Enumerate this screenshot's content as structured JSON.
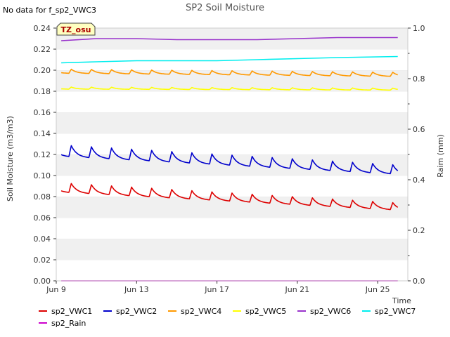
{
  "chart_data": {
    "type": "line",
    "title": "SP2 Soil Moisture",
    "no_data_note": "No data for f_sp2_VWC3",
    "site_badge": "TZ_osu",
    "xlabel": "Time",
    "ylabel": "Soil Moisture (m3/m3)",
    "y2label": "Raim (mm)",
    "xlim": [
      "2024-06-09",
      "2024-06-26T12:00"
    ],
    "ylim": [
      0.0,
      0.24
    ],
    "y2lim": [
      0.0,
      1.0
    ],
    "x_ticks": [
      {
        "date": "2024-06-09",
        "label": "Jun 9"
      },
      {
        "date": "2024-06-13",
        "label": "Jun 13"
      },
      {
        "date": "2024-06-17",
        "label": "Jun 17"
      },
      {
        "date": "2024-06-21",
        "label": "Jun 21"
      },
      {
        "date": "2024-06-25",
        "label": "Jun 25"
      }
    ],
    "y_ticks": [
      "0.00",
      "0.02",
      "0.04",
      "0.06",
      "0.08",
      "0.10",
      "0.12",
      "0.14",
      "0.16",
      "0.18",
      "0.20",
      "0.22",
      "0.24"
    ],
    "y2_ticks": [
      "0.0",
      "0.2",
      "0.4",
      "0.6",
      "0.8",
      "1.0"
    ],
    "grid": "horizontal bands",
    "legend_position": "bottom",
    "series": [
      {
        "name": "sp2_VWC1",
        "color": "#dd0000",
        "pattern": "diurnal",
        "start": "2024-06-09T06:00",
        "end": "2024-06-26",
        "first_peak": "2024-06-09T18:00",
        "base_start": 0.084,
        "base_end": 0.067,
        "amp_start": 0.009,
        "amp_end": 0.007
      },
      {
        "name": "sp2_VWC2",
        "color": "#0000cc",
        "pattern": "diurnal",
        "start": "2024-06-09T06:00",
        "end": "2024-06-26",
        "first_peak": "2024-06-09T18:00",
        "base_start": 0.118,
        "base_end": 0.101,
        "amp_start": 0.011,
        "amp_end": 0.009
      },
      {
        "name": "sp2_VWC4",
        "color": "#ff9900",
        "pattern": "diurnal",
        "start": "2024-06-09T06:00",
        "end": "2024-06-26",
        "first_peak": "2024-06-09T18:00",
        "base_start": 0.197,
        "base_end": 0.194,
        "amp_start": 0.004,
        "amp_end": 0.004
      },
      {
        "name": "sp2_VWC5",
        "color": "#ffff00",
        "pattern": "diurnal",
        "start": "2024-06-09T06:00",
        "end": "2024-06-26",
        "first_peak": "2024-06-09T18:00",
        "base_start": 0.182,
        "base_end": 0.181,
        "amp_start": 0.002,
        "amp_end": 0.002
      },
      {
        "name": "sp2_VWC6",
        "color": "#9933cc",
        "pattern": "trend",
        "x": [
          "2024-06-09T06:00",
          "2024-06-11",
          "2024-06-13",
          "2024-06-15",
          "2024-06-17",
          "2024-06-19",
          "2024-06-21",
          "2024-06-23",
          "2024-06-26"
        ],
        "y": [
          0.228,
          0.23,
          0.23,
          0.229,
          0.229,
          0.229,
          0.23,
          0.231,
          0.231
        ]
      },
      {
        "name": "sp2_VWC7",
        "color": "#00eeee",
        "pattern": "trend",
        "x": [
          "2024-06-09T06:00",
          "2024-06-11",
          "2024-06-13",
          "2024-06-15",
          "2024-06-17",
          "2024-06-19",
          "2024-06-21",
          "2024-06-23",
          "2024-06-26"
        ],
        "y": [
          0.207,
          0.208,
          0.209,
          0.209,
          0.209,
          0.21,
          0.211,
          0.212,
          0.213
        ]
      },
      {
        "name": "sp2_Rain",
        "color": "#cc00cc",
        "pattern": "trend",
        "axis": "right",
        "x": [
          "2024-06-09T06:00",
          "2024-06-26"
        ],
        "y": [
          0.0,
          0.0
        ]
      }
    ]
  }
}
